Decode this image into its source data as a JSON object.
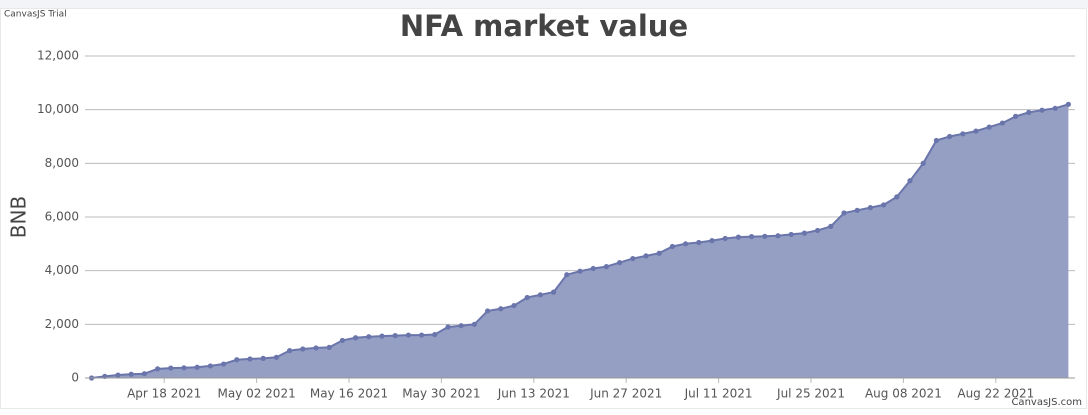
{
  "chart_data": {
    "type": "area",
    "title": "NFA market value",
    "watermark": "CanvasJS Trial",
    "credit": "CanvasJS.com",
    "y_label": "BNB",
    "grid": true,
    "color": "#959fc4",
    "line_color": "#6a75ab",
    "x": [
      "2021-04-07",
      "2021-04-09",
      "2021-04-11",
      "2021-04-13",
      "2021-04-15",
      "2021-04-17",
      "2021-04-19",
      "2021-04-21",
      "2021-04-23",
      "2021-04-25",
      "2021-04-27",
      "2021-04-29",
      "2021-05-01",
      "2021-05-03",
      "2021-05-05",
      "2021-05-07",
      "2021-05-09",
      "2021-05-11",
      "2021-05-13",
      "2021-05-15",
      "2021-05-17",
      "2021-05-19",
      "2021-05-21",
      "2021-05-23",
      "2021-05-25",
      "2021-05-27",
      "2021-05-29",
      "2021-05-31",
      "2021-06-02",
      "2021-06-04",
      "2021-06-06",
      "2021-06-08",
      "2021-06-10",
      "2021-06-12",
      "2021-06-14",
      "2021-06-16",
      "2021-06-18",
      "2021-06-20",
      "2021-06-22",
      "2021-06-24",
      "2021-06-26",
      "2021-06-28",
      "2021-06-30",
      "2021-07-02",
      "2021-07-04",
      "2021-07-06",
      "2021-07-08",
      "2021-07-10",
      "2021-07-12",
      "2021-07-14",
      "2021-07-16",
      "2021-07-18",
      "2021-07-20",
      "2021-07-22",
      "2021-07-24",
      "2021-07-26",
      "2021-07-28",
      "2021-07-30",
      "2021-08-01",
      "2021-08-03",
      "2021-08-05",
      "2021-08-07",
      "2021-08-09",
      "2021-08-11",
      "2021-08-13",
      "2021-08-15",
      "2021-08-17",
      "2021-08-19",
      "2021-08-21",
      "2021-08-23",
      "2021-08-25",
      "2021-08-27",
      "2021-08-29",
      "2021-08-31",
      "2021-09-02"
    ],
    "values": [
      0,
      60,
      110,
      140,
      160,
      340,
      370,
      380,
      400,
      450,
      520,
      680,
      710,
      730,
      770,
      1020,
      1080,
      1120,
      1140,
      1400,
      1500,
      1540,
      1560,
      1580,
      1600,
      1600,
      1620,
      1900,
      1950,
      2000,
      2500,
      2580,
      2700,
      3000,
      3100,
      3200,
      3850,
      3980,
      4080,
      4150,
      4300,
      4450,
      4550,
      4650,
      4900,
      5000,
      5050,
      5120,
      5200,
      5250,
      5270,
      5280,
      5300,
      5350,
      5400,
      5500,
      5650,
      6150,
      6250,
      6350,
      6450,
      6750,
      7350,
      8000,
      8850,
      9000,
      9100,
      9200,
      9350,
      9500,
      9750,
      9900,
      9980,
      10050,
      10200
    ],
    "xlim": [
      "2021-04-06",
      "2021-09-03"
    ],
    "xticks": [
      {
        "value": "2021-04-18",
        "label": "Apr 18 2021"
      },
      {
        "value": "2021-05-02",
        "label": "May 02 2021"
      },
      {
        "value": "2021-05-16",
        "label": "May 16 2021"
      },
      {
        "value": "2021-05-30",
        "label": "May 30 2021"
      },
      {
        "value": "2021-06-13",
        "label": "Jun 13 2021"
      },
      {
        "value": "2021-06-27",
        "label": "Jun 27 2021"
      },
      {
        "value": "2021-07-11",
        "label": "Jul 11 2021"
      },
      {
        "value": "2021-07-25",
        "label": "Jul 25 2021"
      },
      {
        "value": "2021-08-08",
        "label": "Aug 08 2021"
      },
      {
        "value": "2021-08-22",
        "label": "Aug 22 2021"
      }
    ],
    "ylim": [
      0,
      12000
    ],
    "yticks": [
      0,
      {
        "value": 2000,
        "label": "2,000"
      },
      {
        "value": 4000,
        "label": "4,000"
      },
      {
        "value": 6000,
        "label": "6,000"
      },
      {
        "value": 8000,
        "label": "8,000"
      },
      {
        "value": 10000,
        "label": "10,000"
      },
      {
        "value": 12000,
        "label": "12,000"
      }
    ]
  }
}
